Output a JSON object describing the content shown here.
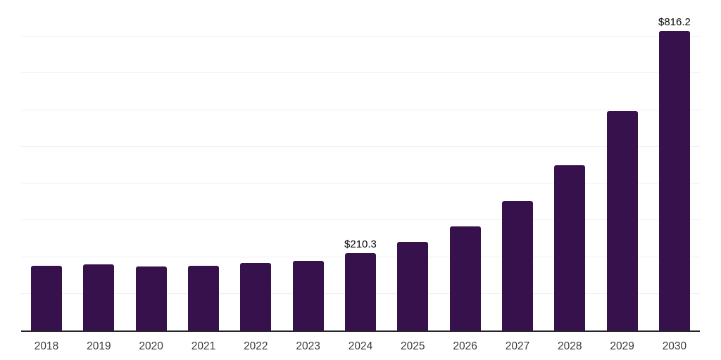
{
  "chart_data": {
    "type": "bar",
    "title": "",
    "xlabel": "",
    "ylabel": "",
    "categories": [
      "2018",
      "2019",
      "2020",
      "2021",
      "2022",
      "2023",
      "2024",
      "2025",
      "2026",
      "2027",
      "2028",
      "2029",
      "2030"
    ],
    "values": [
      176,
      180,
      175,
      176,
      183,
      190,
      210.3,
      241,
      284,
      352,
      450,
      598,
      816.2
    ],
    "point_labels": [
      "",
      "",
      "",
      "",
      "",
      "",
      "$210.3",
      "",
      "",
      "",
      "",
      "",
      "$816.2"
    ],
    "ylim": [
      0,
      900
    ],
    "y_gridline_step": 100,
    "grid": "horizontal",
    "legend": "none",
    "y_axis_tick_labels_visible": false,
    "currency_prefix": "$"
  },
  "style": {
    "background": "#ffffff",
    "bar_color": "#36114b",
    "axis_line_color": "#27262f",
    "gridline_color": "#f0eff2",
    "tick_label_color": "#3b3b3b",
    "data_label_color": "#0a0a0a"
  }
}
